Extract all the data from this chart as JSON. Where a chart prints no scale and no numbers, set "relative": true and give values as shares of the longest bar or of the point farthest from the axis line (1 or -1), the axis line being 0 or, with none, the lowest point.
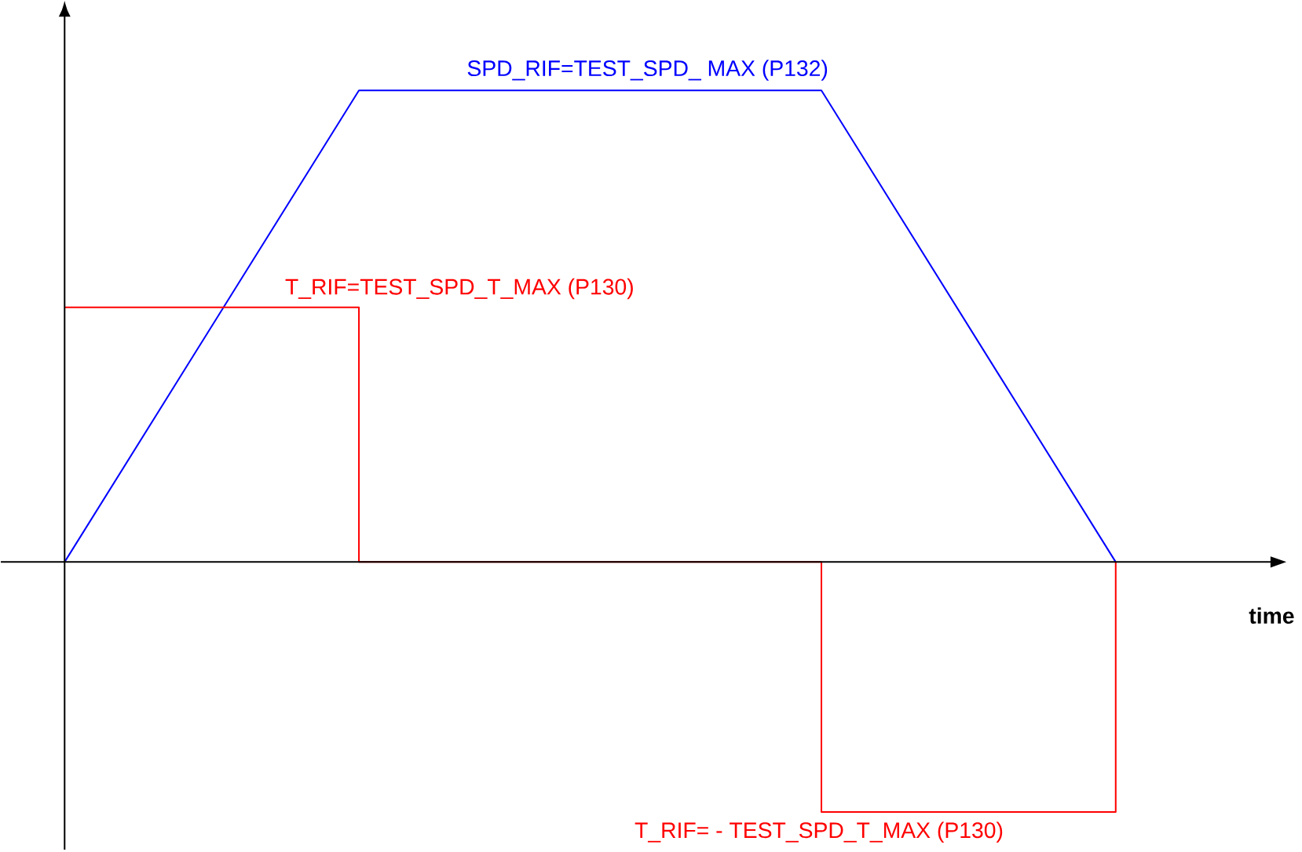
{
  "chart_data": {
    "type": "line",
    "relative": true,
    "marker": "none",
    "categories": [
      null,
      null,
      null,
      null,
      null,
      null,
      null,
      null,
      null,
      null,
      null,
      null,
      null,
      null,
      null,
      null,
      null,
      null,
      null,
      null,
      null,
      null,
      null,
      null,
      null,
      null
    ],
    "series": [
      {
        "name": "SPD_RIF=TEST_SPD_ MAX (P132)",
        "color": "#0000ff",
        "values": [
          0,
          null,
          null,
          null,
          null,
          null,
          null,
          1,
          null,
          null,
          null,
          null,
          null,
          null,
          null,
          null,
          null,
          null,
          1,
          null,
          null,
          null,
          null,
          null,
          null,
          0
        ]
      },
      {
        "name": "T_RIF=TEST_SPD_T_MAX (P130)",
        "type": "step",
        "color": "#ff0000",
        "values": [
          0.54,
          null,
          null,
          null,
          null,
          null,
          null,
          0,
          null,
          null,
          null,
          null,
          null,
          null,
          null,
          null,
          null,
          null,
          -0.53,
          null,
          null,
          null,
          null,
          null,
          null,
          0
        ]
      }
    ],
    "annotations": [
      "time",
      {
        "text": "T_RIF= - TEST_SPD_T_MAX (P130)",
        "y": -0.53
      }
    ]
  }
}
